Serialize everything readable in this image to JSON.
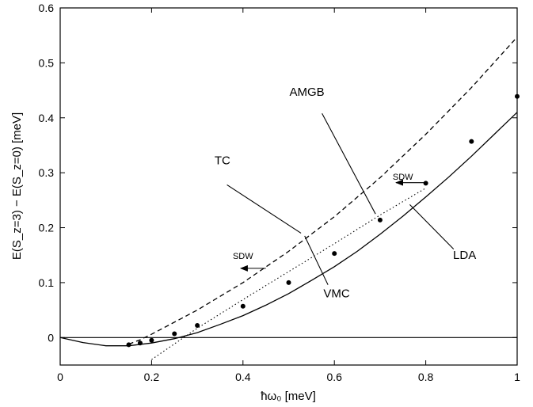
{
  "chart_data": {
    "type": "line",
    "title": "",
    "xlabel": "ħω₀  [meV]",
    "ylabel": "E(S_z=3) − E(S_z=0)  [meV]",
    "xlim": [
      0,
      1
    ],
    "ylim": [
      -0.05,
      0.6
    ],
    "x_ticks": [
      "0",
      "0.2",
      "0.4",
      "0.6",
      "0.8",
      "1"
    ],
    "y_ticks": [
      "0",
      "0.1",
      "0.2",
      "0.3",
      "0.4",
      "0.5",
      "0.6"
    ],
    "grid": false,
    "series": [
      {
        "name": "TC",
        "style": "dashed",
        "x": [
          0.15,
          0.175,
          0.2,
          0.3,
          0.4,
          0.5,
          0.6,
          0.7,
          0.8,
          0.9,
          1.0
        ],
        "y": [
          -0.012,
          -0.004,
          0.006,
          0.05,
          0.1,
          0.157,
          0.22,
          0.291,
          0.37,
          0.455,
          0.547
        ]
      },
      {
        "name": "AMGB",
        "style": "dotted",
        "x": [
          0.2,
          0.3,
          0.4,
          0.5,
          0.6,
          0.7,
          0.8
        ],
        "y": [
          -0.04,
          0.017,
          0.069,
          0.12,
          0.171,
          0.223,
          0.272
        ]
      },
      {
        "name": "LDA",
        "style": "markers",
        "x": [
          0.15,
          0.175,
          0.2,
          0.25,
          0.3,
          0.4,
          0.5,
          0.6,
          0.7,
          0.8,
          0.9,
          1.0
        ],
        "y": [
          -0.013,
          -0.01,
          -0.005,
          0.007,
          0.022,
          0.057,
          0.1,
          0.153,
          0.214,
          0.281,
          0.357,
          0.439
        ]
      },
      {
        "name": "VMC",
        "style": "solid",
        "x": [
          0,
          0.05,
          0.1,
          0.15,
          0.2,
          0.25,
          0.3,
          0.35,
          0.4,
          0.45,
          0.5,
          0.55,
          0.6,
          0.65,
          0.7,
          0.75,
          0.8,
          0.85,
          0.9,
          0.95,
          1.0
        ],
        "y": [
          0,
          -0.009,
          -0.015,
          -0.015,
          -0.01,
          -0.002,
          0.009,
          0.024,
          0.04,
          0.059,
          0.08,
          0.104,
          0.129,
          0.157,
          0.188,
          0.221,
          0.256,
          0.292,
          0.33,
          0.37,
          0.41
        ]
      }
    ],
    "annotations": [
      {
        "text": "TC",
        "x": 0.355,
        "y": 0.315,
        "pointer": [
          [
            0.365,
            0.278
          ],
          [
            0.527,
            0.19
          ]
        ]
      },
      {
        "text": "AMGB",
        "x": 0.54,
        "y": 0.44,
        "pointer": [
          [
            0.573,
            0.408
          ],
          [
            0.69,
            0.225
          ]
        ]
      },
      {
        "text": "LDA",
        "x": 0.885,
        "y": 0.143,
        "pointer": [
          [
            0.861,
            0.161
          ],
          [
            0.765,
            0.242
          ]
        ]
      },
      {
        "text": "VMC",
        "x": 0.605,
        "y": 0.073,
        "pointer": [
          [
            0.586,
            0.096
          ],
          [
            0.535,
            0.185
          ]
        ]
      }
    ],
    "arrows": [
      {
        "text": "SDW",
        "text_x": 0.75,
        "text_y": 0.287,
        "from": [
          0.8,
          0.282
        ],
        "to": [
          0.735,
          0.282
        ]
      },
      {
        "text": "SDW",
        "text_x": 0.4,
        "text_y": 0.143,
        "from": [
          0.45,
          0.126
        ],
        "to": [
          0.395,
          0.126
        ]
      }
    ],
    "hline": 0
  }
}
